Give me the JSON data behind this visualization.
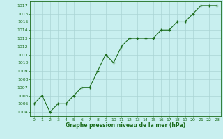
{
  "x": [
    0,
    1,
    2,
    3,
    4,
    5,
    6,
    7,
    8,
    9,
    10,
    11,
    12,
    13,
    14,
    15,
    16,
    17,
    18,
    19,
    20,
    21,
    22,
    23
  ],
  "y": [
    1005,
    1006,
    1004,
    1005,
    1005,
    1006,
    1007,
    1007,
    1009,
    1011,
    1010,
    1012,
    1013,
    1013,
    1013,
    1013,
    1014,
    1014,
    1015,
    1015,
    1016,
    1017,
    1017,
    1017
  ],
  "line_color": "#1a6b1a",
  "marker": "+",
  "marker_color": "#1a6b1a",
  "bg_color": "#c8efef",
  "grid_color": "#aad4d4",
  "xlabel": "Graphe pression niveau de la mer (hPa)",
  "xlabel_color": "#1a6b1a",
  "tick_color": "#1a6b1a",
  "ylim": [
    1003.5,
    1017.5
  ],
  "xlim": [
    -0.5,
    23.5
  ],
  "yticks": [
    1004,
    1005,
    1006,
    1007,
    1008,
    1009,
    1010,
    1011,
    1012,
    1013,
    1014,
    1015,
    1016,
    1017
  ],
  "xticks": [
    0,
    1,
    2,
    3,
    4,
    5,
    6,
    7,
    8,
    9,
    10,
    11,
    12,
    13,
    14,
    15,
    16,
    17,
    18,
    19,
    20,
    21,
    22,
    23
  ],
  "border_color": "#1a6b1a"
}
